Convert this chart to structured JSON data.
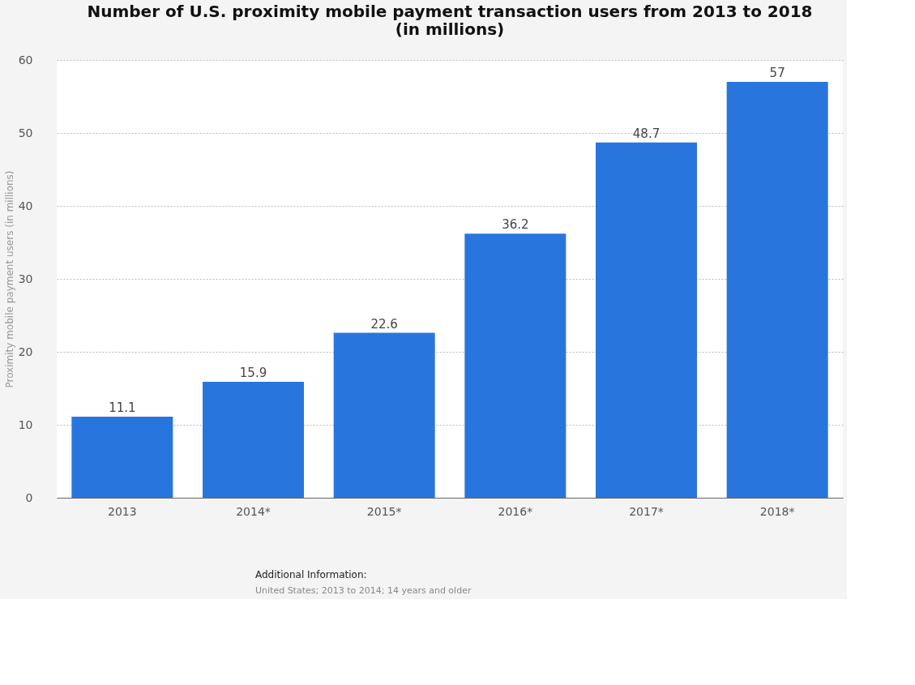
{
  "chart_data": {
    "type": "bar",
    "title": "Number of U.S. proximity mobile payment transaction users from 2013 to 2018 (in millions)",
    "ylabel": "Proximity mobile payment users (in millions)",
    "categories": [
      "2013",
      "2014*",
      "2015*",
      "2016*",
      "2017*",
      "2018*"
    ],
    "values": [
      11.1,
      15.9,
      22.6,
      36.2,
      48.7,
      57
    ],
    "color": "#2876dd",
    "ylim": [
      0,
      60
    ],
    "yticks": [
      0,
      10,
      20,
      30,
      40,
      50,
      60
    ],
    "grid": "y",
    "data_labels": true,
    "annotations": [
      "Additional Information:",
      "United States; 2013 to 2014; 14 years and older"
    ]
  }
}
